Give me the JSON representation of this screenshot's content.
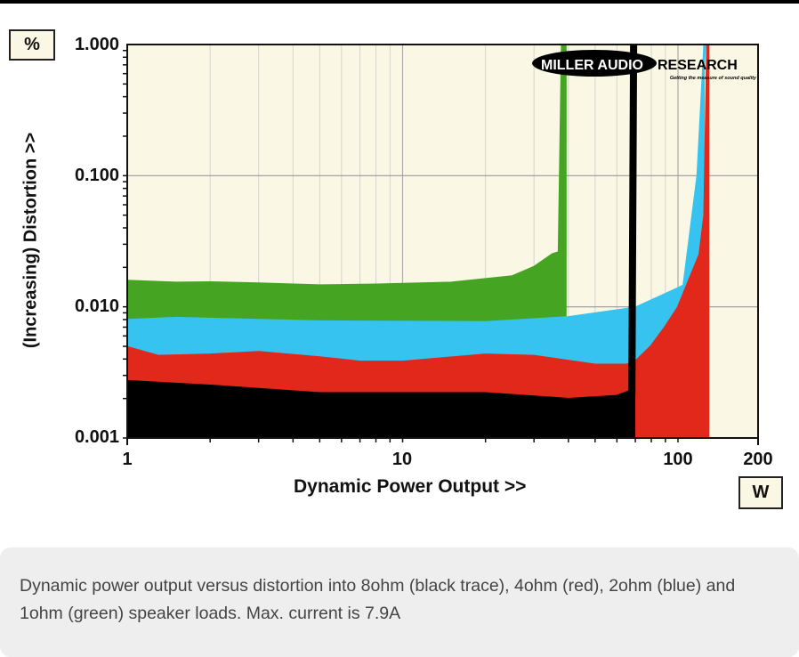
{
  "chart_data": {
    "type": "area",
    "title": "",
    "xlabel": "Dynamic Power Output >>",
    "ylabel": "(Increasing) Distortion >>",
    "x_unit": "W",
    "y_unit": "%",
    "xscale": "log",
    "yscale": "log",
    "xlim": [
      1,
      200
    ],
    "ylim": [
      0.001,
      1.0
    ],
    "x_ticks": [
      {
        "v": 1,
        "label": "1"
      },
      {
        "v": 10,
        "label": "10"
      },
      {
        "v": 100,
        "label": "100"
      },
      {
        "v": 200,
        "label": "200"
      }
    ],
    "y_ticks": [
      {
        "v": 1,
        "label": "1.000"
      },
      {
        "v": 0.1,
        "label": "0.100"
      },
      {
        "v": 0.01,
        "label": "0.010"
      },
      {
        "v": 0.001,
        "label": "0.001"
      }
    ],
    "grid": true,
    "logo": {
      "main": "MILLER AUDIO RESEARCH",
      "tagline": "Getting the measure of sound quality"
    },
    "series": [
      {
        "name": "1ohm",
        "color": "#45a523",
        "points": [
          [
            1,
            0.0157
          ],
          [
            1.5,
            0.0152
          ],
          [
            2,
            0.0153
          ],
          [
            3,
            0.015
          ],
          [
            5,
            0.0145
          ],
          [
            8,
            0.0147
          ],
          [
            15,
            0.0152
          ],
          [
            25,
            0.017
          ],
          [
            30,
            0.02
          ],
          [
            35,
            0.025
          ],
          [
            37,
            0.026
          ],
          [
            38,
            1.0
          ]
        ],
        "fill_end": 39.4
      },
      {
        "name": "2ohm",
        "color": "#36c3ef",
        "points": [
          [
            1,
            0.0079
          ],
          [
            1.5,
            0.0082
          ],
          [
            3,
            0.0079
          ],
          [
            5,
            0.0077
          ],
          [
            20,
            0.0076
          ],
          [
            40,
            0.0083
          ],
          [
            70,
            0.0098
          ],
          [
            100,
            0.0138
          ],
          [
            105,
            0.0145
          ],
          [
            118,
            0.1
          ],
          [
            125,
            1.0
          ]
        ],
        "fill_end": 125
      },
      {
        "name": "4ohm",
        "color": "#e2281a",
        "points": [
          [
            1,
            0.0049
          ],
          [
            1.3,
            0.0042
          ],
          [
            2,
            0.0043
          ],
          [
            3,
            0.0045
          ],
          [
            5,
            0.0041
          ],
          [
            7,
            0.0038
          ],
          [
            10,
            0.0038
          ],
          [
            20,
            0.0043
          ],
          [
            30,
            0.0042
          ],
          [
            50,
            0.0036
          ],
          [
            65,
            0.0036
          ],
          [
            70,
            0.0038
          ],
          [
            80,
            0.005
          ],
          [
            90,
            0.007
          ],
          [
            100,
            0.0098
          ],
          [
            110,
            0.016
          ],
          [
            120,
            0.025
          ],
          [
            125,
            0.05
          ],
          [
            128,
            1.0
          ]
        ],
        "fill_end": 130
      },
      {
        "name": "8ohm",
        "color": "#000000",
        "points": [
          [
            1,
            0.0026
          ],
          [
            2,
            0.0024
          ],
          [
            5,
            0.0021
          ],
          [
            10,
            0.0021
          ],
          [
            20,
            0.0021
          ],
          [
            40,
            0.0019
          ],
          [
            60,
            0.002
          ],
          [
            68,
            0.0022
          ],
          [
            69,
            1.0
          ]
        ],
        "fill_end": 70
      }
    ]
  },
  "caption": "Dynamic power output versus distortion into 8ohm (black trace), 4ohm (red), 2ohm (blue) and 1ohm (green) speaker loads. Max. current is 7.9A"
}
